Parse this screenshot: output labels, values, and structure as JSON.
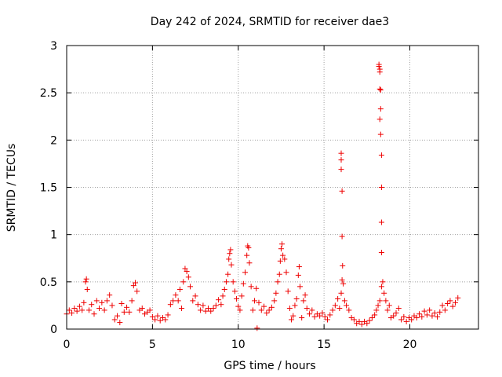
{
  "chart_data": {
    "type": "scatter",
    "title": "Day 242 of 2024, SRMTID for receiver dae3",
    "xlabel": "GPS time / hours",
    "ylabel": "SRMTID / TECUs",
    "xlim": [
      0,
      24
    ],
    "ylim": [
      0,
      3
    ],
    "xticks": [
      0,
      5,
      10,
      15,
      20
    ],
    "yticks": [
      0,
      0.5,
      1,
      1.5,
      2,
      2.5,
      3
    ],
    "xtick_labels": [
      "0",
      "5",
      "10",
      "15",
      "20"
    ],
    "ytick_labels": [
      "0",
      "0.5",
      "1",
      "1.5",
      "2",
      "2.5",
      "3"
    ],
    "grid": true,
    "marker": "+",
    "color": "#ee0000",
    "series": [
      {
        "name": "SRMTID",
        "points": [
          [
            0.0,
            0.16
          ],
          [
            0.15,
            0.2
          ],
          [
            0.3,
            0.17
          ],
          [
            0.45,
            0.22
          ],
          [
            0.6,
            0.19
          ],
          [
            0.75,
            0.24
          ],
          [
            0.9,
            0.2
          ],
          [
            1.0,
            0.28
          ],
          [
            1.1,
            0.5
          ],
          [
            1.15,
            0.53
          ],
          [
            1.2,
            0.42
          ],
          [
            1.3,
            0.2
          ],
          [
            1.45,
            0.26
          ],
          [
            1.6,
            0.16
          ],
          [
            1.75,
            0.3
          ],
          [
            1.9,
            0.22
          ],
          [
            2.05,
            0.28
          ],
          [
            2.2,
            0.2
          ],
          [
            2.35,
            0.3
          ],
          [
            2.5,
            0.36
          ],
          [
            2.65,
            0.25
          ],
          [
            2.8,
            0.1
          ],
          [
            2.95,
            0.14
          ],
          [
            3.1,
            0.07
          ],
          [
            3.2,
            0.27
          ],
          [
            3.35,
            0.18
          ],
          [
            3.5,
            0.23
          ],
          [
            3.65,
            0.18
          ],
          [
            3.8,
            0.3
          ],
          [
            3.9,
            0.46
          ],
          [
            4.0,
            0.49
          ],
          [
            4.1,
            0.4
          ],
          [
            4.25,
            0.2
          ],
          [
            4.4,
            0.22
          ],
          [
            4.55,
            0.16
          ],
          [
            4.7,
            0.18
          ],
          [
            4.85,
            0.2
          ],
          [
            5.0,
            0.13
          ],
          [
            5.15,
            0.1
          ],
          [
            5.3,
            0.14
          ],
          [
            5.45,
            0.09
          ],
          [
            5.6,
            0.12
          ],
          [
            5.75,
            0.1
          ],
          [
            5.9,
            0.15
          ],
          [
            6.05,
            0.26
          ],
          [
            6.2,
            0.3
          ],
          [
            6.35,
            0.36
          ],
          [
            6.5,
            0.3
          ],
          [
            6.6,
            0.42
          ],
          [
            6.7,
            0.22
          ],
          [
            6.8,
            0.5
          ],
          [
            6.9,
            0.64
          ],
          [
            7.0,
            0.61
          ],
          [
            7.1,
            0.55
          ],
          [
            7.2,
            0.45
          ],
          [
            7.35,
            0.3
          ],
          [
            7.5,
            0.35
          ],
          [
            7.65,
            0.26
          ],
          [
            7.8,
            0.2
          ],
          [
            7.95,
            0.25
          ],
          [
            8.1,
            0.19
          ],
          [
            8.25,
            0.22
          ],
          [
            8.4,
            0.19
          ],
          [
            8.55,
            0.22
          ],
          [
            8.7,
            0.25
          ],
          [
            8.85,
            0.31
          ],
          [
            9.0,
            0.26
          ],
          [
            9.1,
            0.35
          ],
          [
            9.2,
            0.42
          ],
          [
            9.3,
            0.5
          ],
          [
            9.4,
            0.58
          ],
          [
            9.45,
            0.74
          ],
          [
            9.5,
            0.8
          ],
          [
            9.55,
            0.84
          ],
          [
            9.6,
            0.68
          ],
          [
            9.7,
            0.5
          ],
          [
            9.8,
            0.4
          ],
          [
            9.9,
            0.32
          ],
          [
            10.0,
            0.24
          ],
          [
            10.1,
            0.2
          ],
          [
            10.2,
            0.35
          ],
          [
            10.3,
            0.48
          ],
          [
            10.4,
            0.6
          ],
          [
            10.5,
            0.78
          ],
          [
            10.55,
            0.88
          ],
          [
            10.6,
            0.86
          ],
          [
            10.65,
            0.7
          ],
          [
            10.75,
            0.45
          ],
          [
            10.85,
            0.2
          ],
          [
            10.95,
            0.3
          ],
          [
            11.05,
            0.43
          ],
          [
            11.1,
            0.01
          ],
          [
            11.2,
            0.28
          ],
          [
            11.35,
            0.2
          ],
          [
            11.5,
            0.24
          ],
          [
            11.65,
            0.17
          ],
          [
            11.8,
            0.2
          ],
          [
            11.95,
            0.23
          ],
          [
            12.1,
            0.3
          ],
          [
            12.2,
            0.38
          ],
          [
            12.3,
            0.5
          ],
          [
            12.4,
            0.58
          ],
          [
            12.45,
            0.72
          ],
          [
            12.5,
            0.85
          ],
          [
            12.55,
            0.9
          ],
          [
            12.6,
            0.78
          ],
          [
            12.7,
            0.74
          ],
          [
            12.8,
            0.6
          ],
          [
            12.9,
            0.4
          ],
          [
            13.0,
            0.22
          ],
          [
            13.1,
            0.1
          ],
          [
            13.2,
            0.14
          ],
          [
            13.3,
            0.25
          ],
          [
            13.4,
            0.32
          ],
          [
            13.5,
            0.57
          ],
          [
            13.55,
            0.66
          ],
          [
            13.6,
            0.45
          ],
          [
            13.7,
            0.12
          ],
          [
            13.8,
            0.3
          ],
          [
            13.9,
            0.36
          ],
          [
            14.0,
            0.22
          ],
          [
            14.15,
            0.16
          ],
          [
            14.3,
            0.2
          ],
          [
            14.45,
            0.13
          ],
          [
            14.6,
            0.16
          ],
          [
            14.75,
            0.14
          ],
          [
            14.9,
            0.17
          ],
          [
            15.05,
            0.13
          ],
          [
            15.2,
            0.1
          ],
          [
            15.35,
            0.15
          ],
          [
            15.5,
            0.2
          ],
          [
            15.65,
            0.25
          ],
          [
            15.8,
            0.32
          ],
          [
            15.9,
            0.22
          ],
          [
            16.0,
            0.38
          ],
          [
            16.05,
            0.52
          ],
          [
            16.08,
            0.67
          ],
          [
            16.12,
            0.48
          ],
          [
            16.2,
            0.3
          ],
          [
            16.3,
            0.25
          ],
          [
            16.45,
            0.2
          ],
          [
            16.6,
            0.12
          ],
          [
            16.75,
            0.1
          ],
          [
            16.9,
            0.06
          ],
          [
            17.05,
            0.08
          ],
          [
            17.2,
            0.05
          ],
          [
            17.35,
            0.08
          ],
          [
            17.5,
            0.06
          ],
          [
            17.65,
            0.09
          ],
          [
            17.8,
            0.12
          ],
          [
            17.95,
            0.15
          ],
          [
            18.05,
            0.2
          ],
          [
            18.15,
            0.25
          ],
          [
            18.25,
            0.3
          ],
          [
            18.35,
            0.45
          ],
          [
            18.42,
            0.5
          ],
          [
            18.5,
            0.38
          ],
          [
            18.6,
            0.3
          ],
          [
            18.7,
            0.2
          ],
          [
            18.8,
            0.25
          ],
          [
            18.9,
            0.12
          ],
          [
            19.05,
            0.14
          ],
          [
            19.2,
            0.17
          ],
          [
            19.35,
            0.22
          ],
          [
            19.5,
            0.1
          ],
          [
            19.65,
            0.13
          ],
          [
            19.8,
            0.08
          ],
          [
            19.95,
            0.12
          ],
          [
            20.1,
            0.1
          ],
          [
            20.25,
            0.14
          ],
          [
            20.4,
            0.12
          ],
          [
            20.55,
            0.16
          ],
          [
            20.7,
            0.13
          ],
          [
            20.85,
            0.19
          ],
          [
            21.0,
            0.15
          ],
          [
            21.15,
            0.2
          ],
          [
            21.3,
            0.14
          ],
          [
            21.45,
            0.17
          ],
          [
            21.6,
            0.13
          ],
          [
            21.75,
            0.18
          ],
          [
            21.9,
            0.25
          ],
          [
            22.05,
            0.2
          ],
          [
            22.2,
            0.27
          ],
          [
            22.35,
            0.3
          ],
          [
            22.5,
            0.24
          ],
          [
            22.65,
            0.28
          ],
          [
            22.8,
            0.33
          ],
          [
            16.0,
            1.86
          ],
          [
            16.0,
            1.79
          ],
          [
            16.0,
            1.69
          ],
          [
            16.05,
            1.46
          ],
          [
            16.05,
            0.98
          ],
          [
            18.2,
            2.8
          ],
          [
            18.2,
            2.78
          ],
          [
            18.25,
            2.75
          ],
          [
            18.25,
            2.72
          ],
          [
            18.25,
            2.54
          ],
          [
            18.3,
            2.53
          ],
          [
            18.3,
            2.33
          ],
          [
            18.25,
            2.22
          ],
          [
            18.3,
            2.06
          ],
          [
            18.35,
            1.84
          ],
          [
            18.35,
            1.5
          ],
          [
            18.35,
            1.13
          ],
          [
            18.35,
            0.81
          ]
        ]
      }
    ]
  }
}
